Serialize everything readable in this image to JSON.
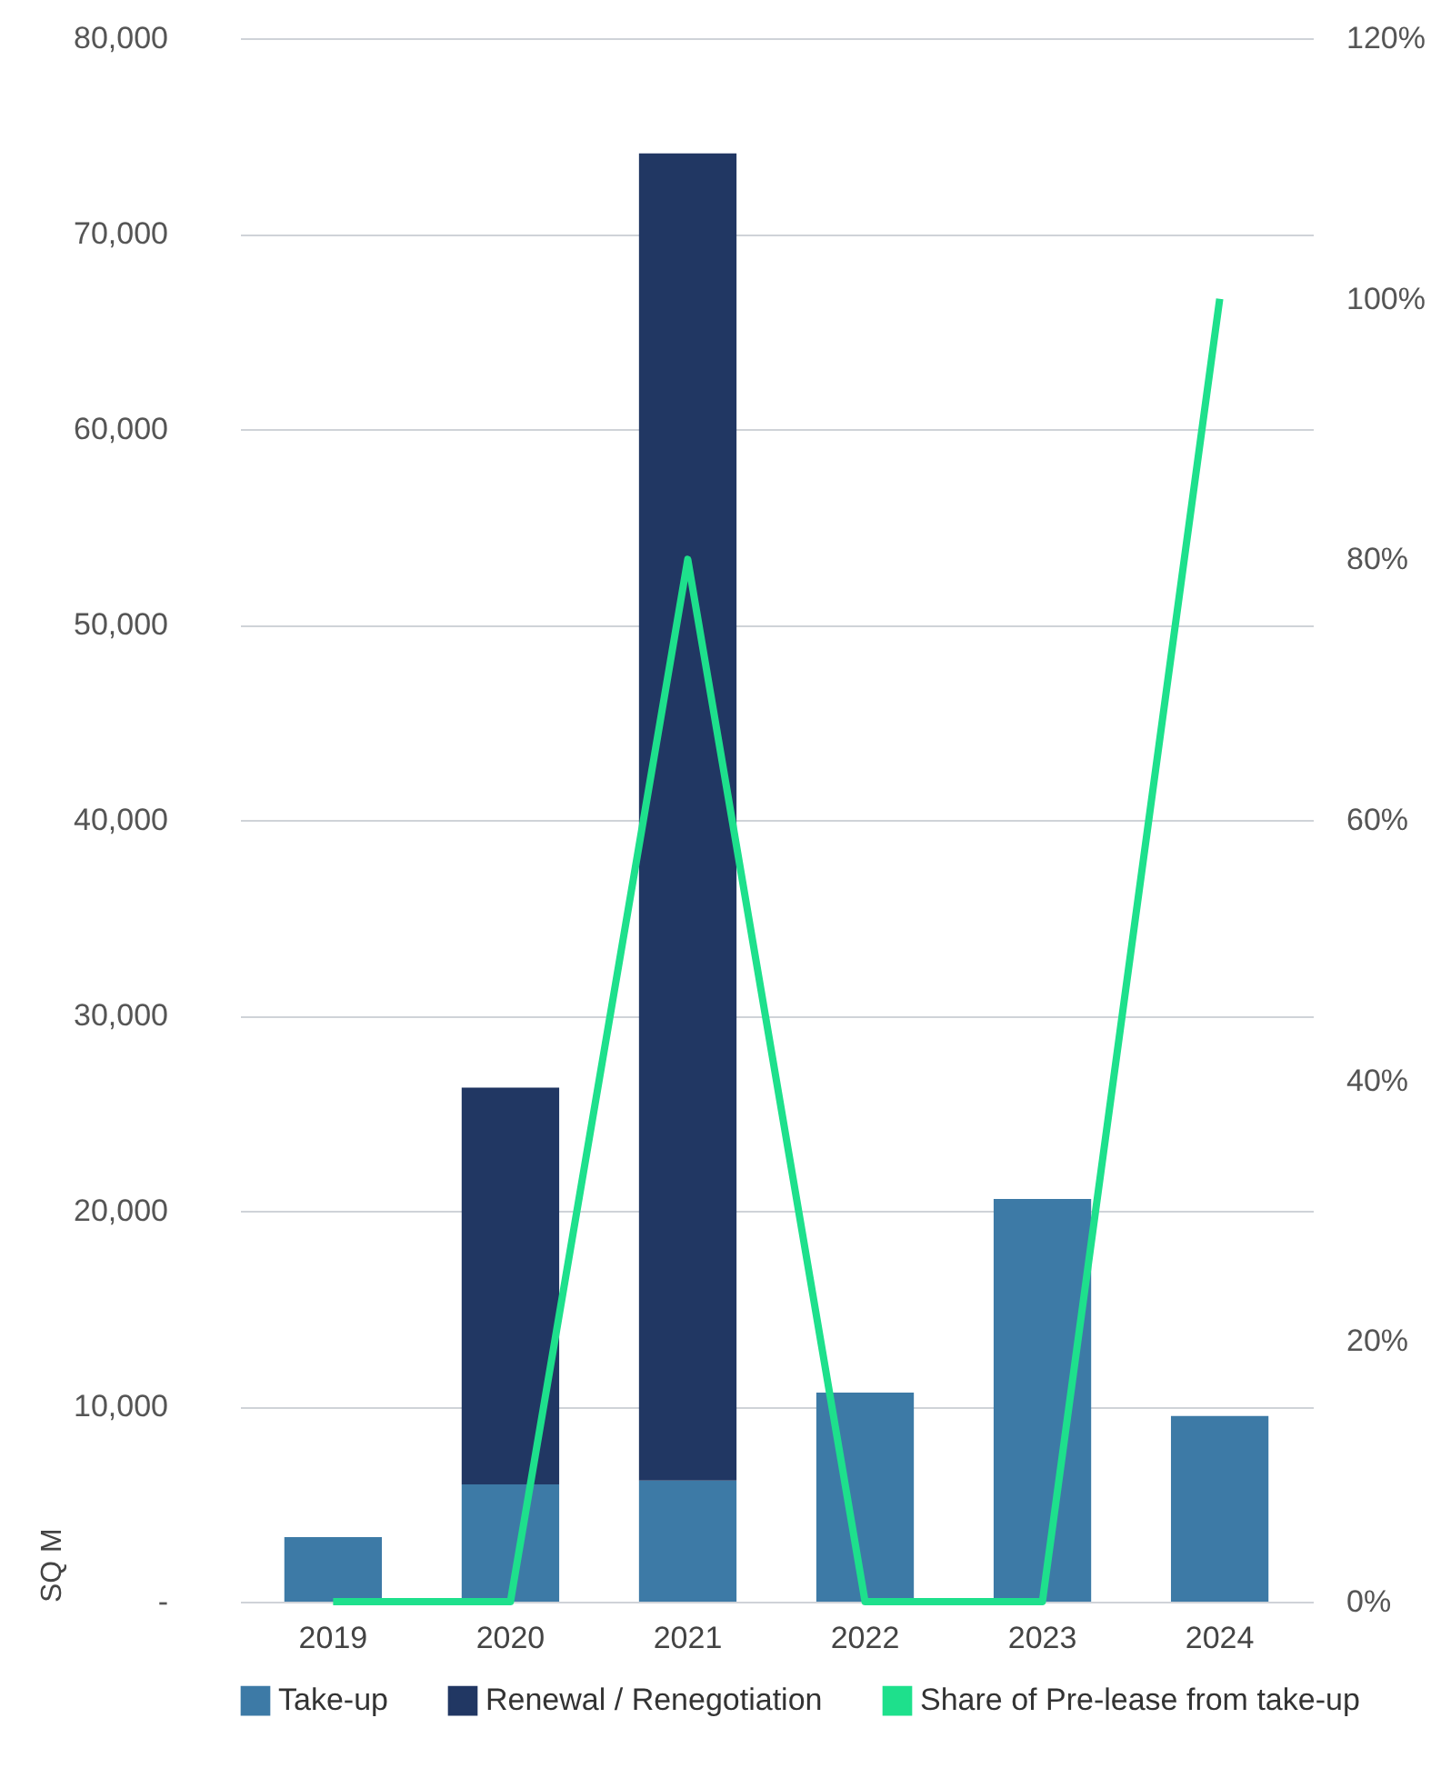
{
  "chart_data": {
    "type": "bar",
    "stacked": true,
    "categories": [
      "2019",
      "2020",
      "2021",
      "2022",
      "2023",
      "2024"
    ],
    "series": [
      {
        "name": "Take-up",
        "color": "#3d7aa6",
        "values": [
          3300,
          6000,
          6200,
          10700,
          20600,
          9500
        ]
      },
      {
        "name": "Renewal / Renegotiation",
        "color": "#213763",
        "values": [
          null,
          20300,
          67900,
          null,
          null,
          null
        ]
      },
      {
        "name": "Share of Pre-lease from take-up",
        "type": "line",
        "axis": "y2",
        "color": "#1ee08c",
        "values": [
          0,
          0,
          80,
          0,
          0,
          100
        ]
      }
    ],
    "ylabel": "SQ M",
    "ylim": [
      0,
      80000
    ],
    "yticks": [
      {
        "value": 0,
        "label": "-"
      },
      {
        "value": 10000,
        "label": "10,000"
      },
      {
        "value": 20000,
        "label": "20,000"
      },
      {
        "value": 30000,
        "label": "30,000"
      },
      {
        "value": 40000,
        "label": "40,000"
      },
      {
        "value": 50000,
        "label": "50,000"
      },
      {
        "value": 60000,
        "label": "60,000"
      },
      {
        "value": 70000,
        "label": "70,000"
      },
      {
        "value": 80000,
        "label": "80,000"
      }
    ],
    "y2lim": [
      0,
      120
    ],
    "y2ticks": [
      {
        "value": 0,
        "label": "0%"
      },
      {
        "value": 20,
        "label": "20%"
      },
      {
        "value": 40,
        "label": "40%"
      },
      {
        "value": 60,
        "label": "60%"
      },
      {
        "value": 80,
        "label": "80%"
      },
      {
        "value": 100,
        "label": "100%"
      },
      {
        "value": 120,
        "label": "120%"
      }
    ],
    "grid": "y",
    "legend": "bottom"
  }
}
